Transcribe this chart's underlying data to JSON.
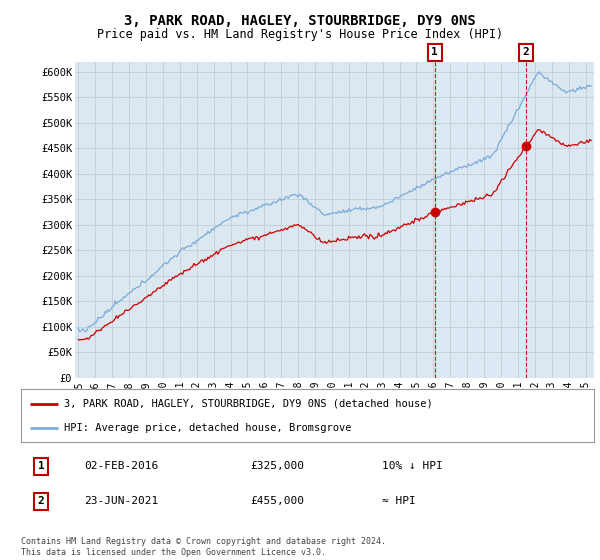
{
  "title": "3, PARK ROAD, HAGLEY, STOURBRIDGE, DY9 0NS",
  "subtitle": "Price paid vs. HM Land Registry's House Price Index (HPI)",
  "ylabel_ticks": [
    "£0",
    "£50K",
    "£100K",
    "£150K",
    "£200K",
    "£250K",
    "£300K",
    "£350K",
    "£400K",
    "£450K",
    "£500K",
    "£550K",
    "£600K"
  ],
  "ytick_vals": [
    0,
    50000,
    100000,
    150000,
    200000,
    250000,
    300000,
    350000,
    400000,
    450000,
    500000,
    550000,
    600000
  ],
  "ylim": [
    0,
    620000
  ],
  "xlim_start": 1994.8,
  "xlim_end": 2025.5,
  "xticks": [
    1995,
    1996,
    1997,
    1998,
    1999,
    2000,
    2001,
    2002,
    2003,
    2004,
    2005,
    2006,
    2007,
    2008,
    2009,
    2010,
    2011,
    2012,
    2013,
    2014,
    2015,
    2016,
    2017,
    2018,
    2019,
    2020,
    2021,
    2022,
    2023,
    2024,
    2025
  ],
  "sale1_x": 2016.085,
  "sale1_y": 325000,
  "sale2_x": 2021.48,
  "sale2_y": 455000,
  "marker_vline_color": "#cc0000",
  "hpi_color": "#7aabda",
  "price_color": "#cc0000",
  "shade_color": "#dce9f5",
  "legend_label1": "3, PARK ROAD, HAGLEY, STOURBRIDGE, DY9 0NS (detached house)",
  "legend_label2": "HPI: Average price, detached house, Bromsgrove",
  "table_row1_date": "02-FEB-2016",
  "table_row1_price": "£325,000",
  "table_row1_hpi": "10% ↓ HPI",
  "table_row2_date": "23-JUN-2021",
  "table_row2_price": "£455,000",
  "table_row2_hpi": "≈ HPI",
  "footer": "Contains HM Land Registry data © Crown copyright and database right 2024.\nThis data is licensed under the Open Government Licence v3.0.",
  "plot_bg_color": "#dce8f0",
  "fig_bg_color": "#ffffff",
  "grid_color": "#c0c8d0"
}
